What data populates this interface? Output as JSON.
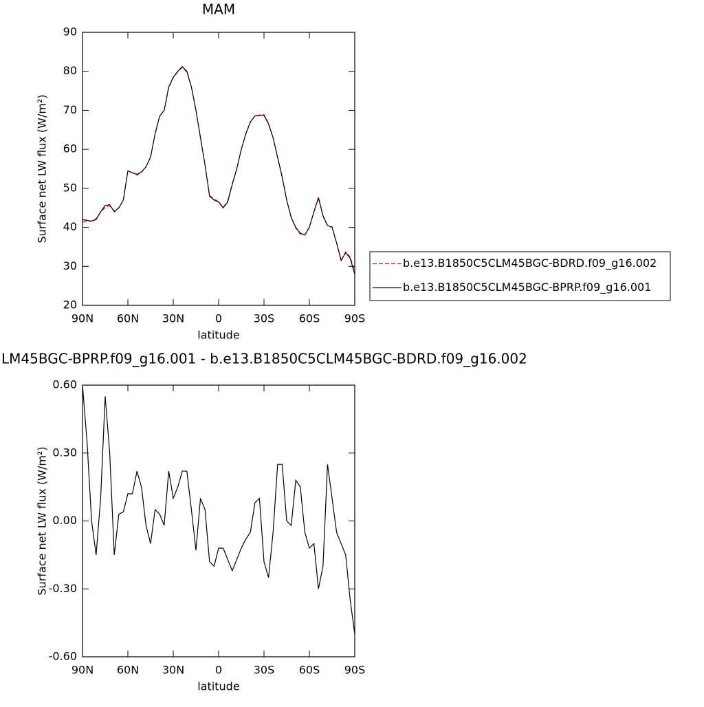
{
  "chart_data": [
    {
      "type": "line",
      "title": "MAM",
      "x_label": "latitude",
      "y_label": "Surface net LW flux (W/m²)",
      "x": [
        90,
        87,
        84,
        81,
        78,
        75,
        72,
        69,
        66,
        63,
        60,
        57,
        54,
        51,
        48,
        45,
        42,
        39,
        36,
        33,
        30,
        27,
        24,
        21,
        18,
        15,
        12,
        9,
        6,
        3,
        0,
        -3,
        -6,
        -9,
        -12,
        -15,
        -18,
        -21,
        -24,
        -27,
        -30,
        -33,
        -36,
        -39,
        -42,
        -45,
        -48,
        -51,
        -54,
        -57,
        -60,
        -63,
        -66,
        -69,
        -72,
        -75,
        -78,
        -81,
        -84,
        -87,
        -90
      ],
      "xlim": [
        90,
        -90
      ],
      "xticks": [
        {
          "value": 90,
          "label": "90N"
        },
        {
          "value": 60,
          "label": "60N"
        },
        {
          "value": 30,
          "label": "30N"
        },
        0,
        {
          "value": -30,
          "label": "30S"
        },
        {
          "value": -60,
          "label": "60S"
        },
        {
          "value": -90,
          "label": "90S"
        }
      ],
      "ylim": [
        20,
        90
      ],
      "yticks": [
        20,
        30,
        40,
        50,
        60,
        70,
        80,
        90
      ],
      "grid": false,
      "legend": "outside-right",
      "series": [
        {
          "name": "b.e13.B1850C5CLM45BGC-BDRD.f09_g16.002",
          "color": "#ff0000",
          "dash": true,
          "values": [
            41.4,
            41.5,
            41.6,
            42.2,
            43.9,
            45.1,
            45.5,
            44.2,
            45.0,
            47.0,
            54.4,
            54.0,
            53.4,
            54.1,
            55.5,
            58.1,
            63.9,
            68.5,
            70.0,
            75.8,
            78.4,
            79.9,
            81.0,
            79.8,
            76.0,
            70.1,
            62.9,
            56.0,
            48.2,
            47.2,
            46.6,
            45.1,
            46.7,
            51.2,
            55.0,
            60.1,
            63.9,
            67.0,
            68.5,
            68.7,
            68.9,
            66.7,
            63.0,
            57.8,
            52.8,
            47.0,
            42.5,
            39.8,
            38.3,
            38.1,
            40.1,
            43.9,
            47.8,
            42.8,
            40.4,
            40.1,
            36.1,
            31.6,
            33.7,
            32.4,
            28.5
          ]
        },
        {
          "name": "b.e13.B1850C5CLM45BGC-BPRP.f09_g16.001",
          "color": "#000000",
          "dash": false,
          "values": [
            42.0,
            41.8,
            41.6,
            42.0,
            44.0,
            45.6,
            45.8,
            44.0,
            45.0,
            47.0,
            54.5,
            54.0,
            53.6,
            54.2,
            55.5,
            58.0,
            64.0,
            68.5,
            70.0,
            76.0,
            78.5,
            80.0,
            81.2,
            80.0,
            76.0,
            70.0,
            63.0,
            56.0,
            48.0,
            47.0,
            46.5,
            45.0,
            46.5,
            51.0,
            55.0,
            60.0,
            64.0,
            67.0,
            68.6,
            68.8,
            68.7,
            66.5,
            63.0,
            58.0,
            53.0,
            47.0,
            42.5,
            40.0,
            38.5,
            38.0,
            40.0,
            44.0,
            47.5,
            43.0,
            40.5,
            40.0,
            36.0,
            31.5,
            33.5,
            32.0,
            28.0
          ]
        }
      ]
    },
    {
      "type": "line",
      "title": "LM45BGC-BPRP.f09_g16.001 - b.e13.B1850C5CLM45BGC-BDRD.f09_g16.002",
      "x_label": "latitude",
      "y_label": "Surface net LW flux (W/m²)",
      "x": [
        90,
        87,
        84,
        81,
        78,
        75,
        72,
        69,
        66,
        63,
        60,
        57,
        54,
        51,
        48,
        45,
        42,
        39,
        36,
        33,
        30,
        27,
        24,
        21,
        18,
        15,
        12,
        9,
        6,
        3,
        0,
        -3,
        -6,
        -9,
        -12,
        -15,
        -18,
        -21,
        -24,
        -27,
        -30,
        -33,
        -36,
        -39,
        -42,
        -45,
        -48,
        -51,
        -54,
        -57,
        -60,
        -63,
        -66,
        -69,
        -72,
        -75,
        -78,
        -81,
        -84,
        -87,
        -90
      ],
      "xlim": [
        90,
        -90
      ],
      "xticks": [
        {
          "value": 90,
          "label": "90N"
        },
        {
          "value": 60,
          "label": "60N"
        },
        {
          "value": 30,
          "label": "30N"
        },
        0,
        {
          "value": -30,
          "label": "30S"
        },
        {
          "value": -60,
          "label": "60S"
        },
        {
          "value": -90,
          "label": "90S"
        }
      ],
      "ylim": [
        -0.6,
        0.6
      ],
      "yticks": [
        {
          "value": -0.6,
          "label": "-0.60"
        },
        {
          "value": -0.3,
          "label": "-0.30"
        },
        {
          "value": 0,
          "label": "0.00"
        },
        {
          "value": 0.3,
          "label": "0.30"
        },
        {
          "value": 0.6,
          "label": "0.60"
        }
      ],
      "grid": false,
      "series": [
        {
          "color": "#000000",
          "dash": false,
          "values": [
            0.6,
            0.35,
            0.0,
            -0.15,
            0.1,
            0.55,
            0.3,
            -0.15,
            0.03,
            0.04,
            0.12,
            0.12,
            0.22,
            0.15,
            -0.02,
            -0.1,
            0.05,
            0.03,
            -0.02,
            0.22,
            0.1,
            0.15,
            0.22,
            0.22,
            0.05,
            -0.13,
            0.1,
            0.05,
            -0.18,
            -0.2,
            -0.12,
            -0.12,
            -0.17,
            -0.22,
            -0.17,
            -0.12,
            -0.08,
            -0.05,
            0.08,
            0.1,
            -0.18,
            -0.25,
            -0.05,
            0.25,
            0.25,
            0.0,
            -0.02,
            0.18,
            0.15,
            -0.05,
            -0.12,
            -0.1,
            -0.3,
            -0.2,
            0.25,
            0.1,
            -0.05,
            -0.1,
            -0.15,
            -0.35,
            -0.5
          ]
        }
      ]
    }
  ]
}
